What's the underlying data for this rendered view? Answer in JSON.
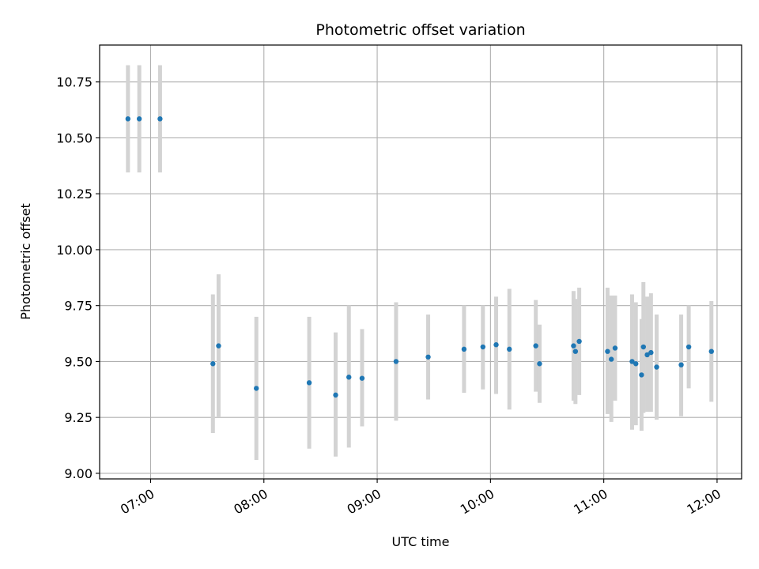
{
  "chart_data": {
    "type": "scatter",
    "title": "Photometric offset variation",
    "xlabel": "UTC time",
    "ylabel": "Photometric offset",
    "x_ticks": [
      "07:00",
      "08:00",
      "09:00",
      "10:00",
      "11:00",
      "12:00"
    ],
    "y_ticks": [
      "9.00",
      "9.25",
      "9.50",
      "9.75",
      "10.00",
      "10.25",
      "10.50",
      "10.75"
    ],
    "xlim": [
      "06:33",
      "12:13"
    ],
    "ylim": [
      8.975,
      10.915
    ],
    "grid": true,
    "colors": {
      "point": "#1f77b4",
      "errorbar": "#d3d3d3",
      "grid": "#b0b0b0"
    },
    "points": [
      {
        "x": "06:48",
        "y": 10.585,
        "lo": 10.345,
        "hi": 10.825
      },
      {
        "x": "06:54",
        "y": 10.585,
        "lo": 10.345,
        "hi": 10.825
      },
      {
        "x": "07:05",
        "y": 10.585,
        "lo": 10.345,
        "hi": 10.825
      },
      {
        "x": "07:33",
        "y": 9.49,
        "lo": 9.18,
        "hi": 9.8
      },
      {
        "x": "07:36",
        "y": 9.57,
        "lo": 9.25,
        "hi": 9.89
      },
      {
        "x": "07:56",
        "y": 9.38,
        "lo": 9.06,
        "hi": 9.7
      },
      {
        "x": "08:24",
        "y": 9.405,
        "lo": 9.11,
        "hi": 9.7
      },
      {
        "x": "08:38",
        "y": 9.35,
        "lo": 9.075,
        "hi": 9.63
      },
      {
        "x": "08:45",
        "y": 9.43,
        "lo": 9.115,
        "hi": 9.75
      },
      {
        "x": "08:52",
        "y": 9.425,
        "lo": 9.21,
        "hi": 9.645
      },
      {
        "x": "09:10",
        "y": 9.5,
        "lo": 9.235,
        "hi": 9.765
      },
      {
        "x": "09:27",
        "y": 9.52,
        "lo": 9.33,
        "hi": 9.71
      },
      {
        "x": "09:46",
        "y": 9.555,
        "lo": 9.36,
        "hi": 9.75
      },
      {
        "x": "09:56",
        "y": 9.565,
        "lo": 9.375,
        "hi": 9.75
      },
      {
        "x": "10:03",
        "y": 9.575,
        "lo": 9.355,
        "hi": 9.79
      },
      {
        "x": "10:10",
        "y": 9.555,
        "lo": 9.285,
        "hi": 9.825
      },
      {
        "x": "10:24",
        "y": 9.57,
        "lo": 9.365,
        "hi": 9.775
      },
      {
        "x": "10:26",
        "y": 9.49,
        "lo": 9.315,
        "hi": 9.665
      },
      {
        "x": "10:44",
        "y": 9.57,
        "lo": 9.325,
        "hi": 9.815
      },
      {
        "x": "10:45",
        "y": 9.545,
        "lo": 9.31,
        "hi": 9.78
      },
      {
        "x": "10:47",
        "y": 9.59,
        "lo": 9.35,
        "hi": 9.83
      },
      {
        "x": "11:02",
        "y": 9.545,
        "lo": 9.265,
        "hi": 9.83
      },
      {
        "x": "11:04",
        "y": 9.51,
        "lo": 9.23,
        "hi": 9.795
      },
      {
        "x": "11:06",
        "y": 9.56,
        "lo": 9.325,
        "hi": 9.795
      },
      {
        "x": "11:15",
        "y": 9.5,
        "lo": 9.195,
        "hi": 9.8
      },
      {
        "x": "11:17",
        "y": 9.49,
        "lo": 9.215,
        "hi": 9.765
      },
      {
        "x": "11:20",
        "y": 9.44,
        "lo": 9.19,
        "hi": 9.69
      },
      {
        "x": "11:21",
        "y": 9.565,
        "lo": 9.27,
        "hi": 9.855
      },
      {
        "x": "11:23",
        "y": 9.53,
        "lo": 9.275,
        "hi": 9.79
      },
      {
        "x": "11:25",
        "y": 9.54,
        "lo": 9.275,
        "hi": 9.805
      },
      {
        "x": "11:28",
        "y": 9.475,
        "lo": 9.24,
        "hi": 9.71
      },
      {
        "x": "11:41",
        "y": 9.485,
        "lo": 9.255,
        "hi": 9.71
      },
      {
        "x": "11:45",
        "y": 9.565,
        "lo": 9.38,
        "hi": 9.75
      },
      {
        "x": "11:57",
        "y": 9.545,
        "lo": 9.32,
        "hi": 9.77
      }
    ]
  }
}
